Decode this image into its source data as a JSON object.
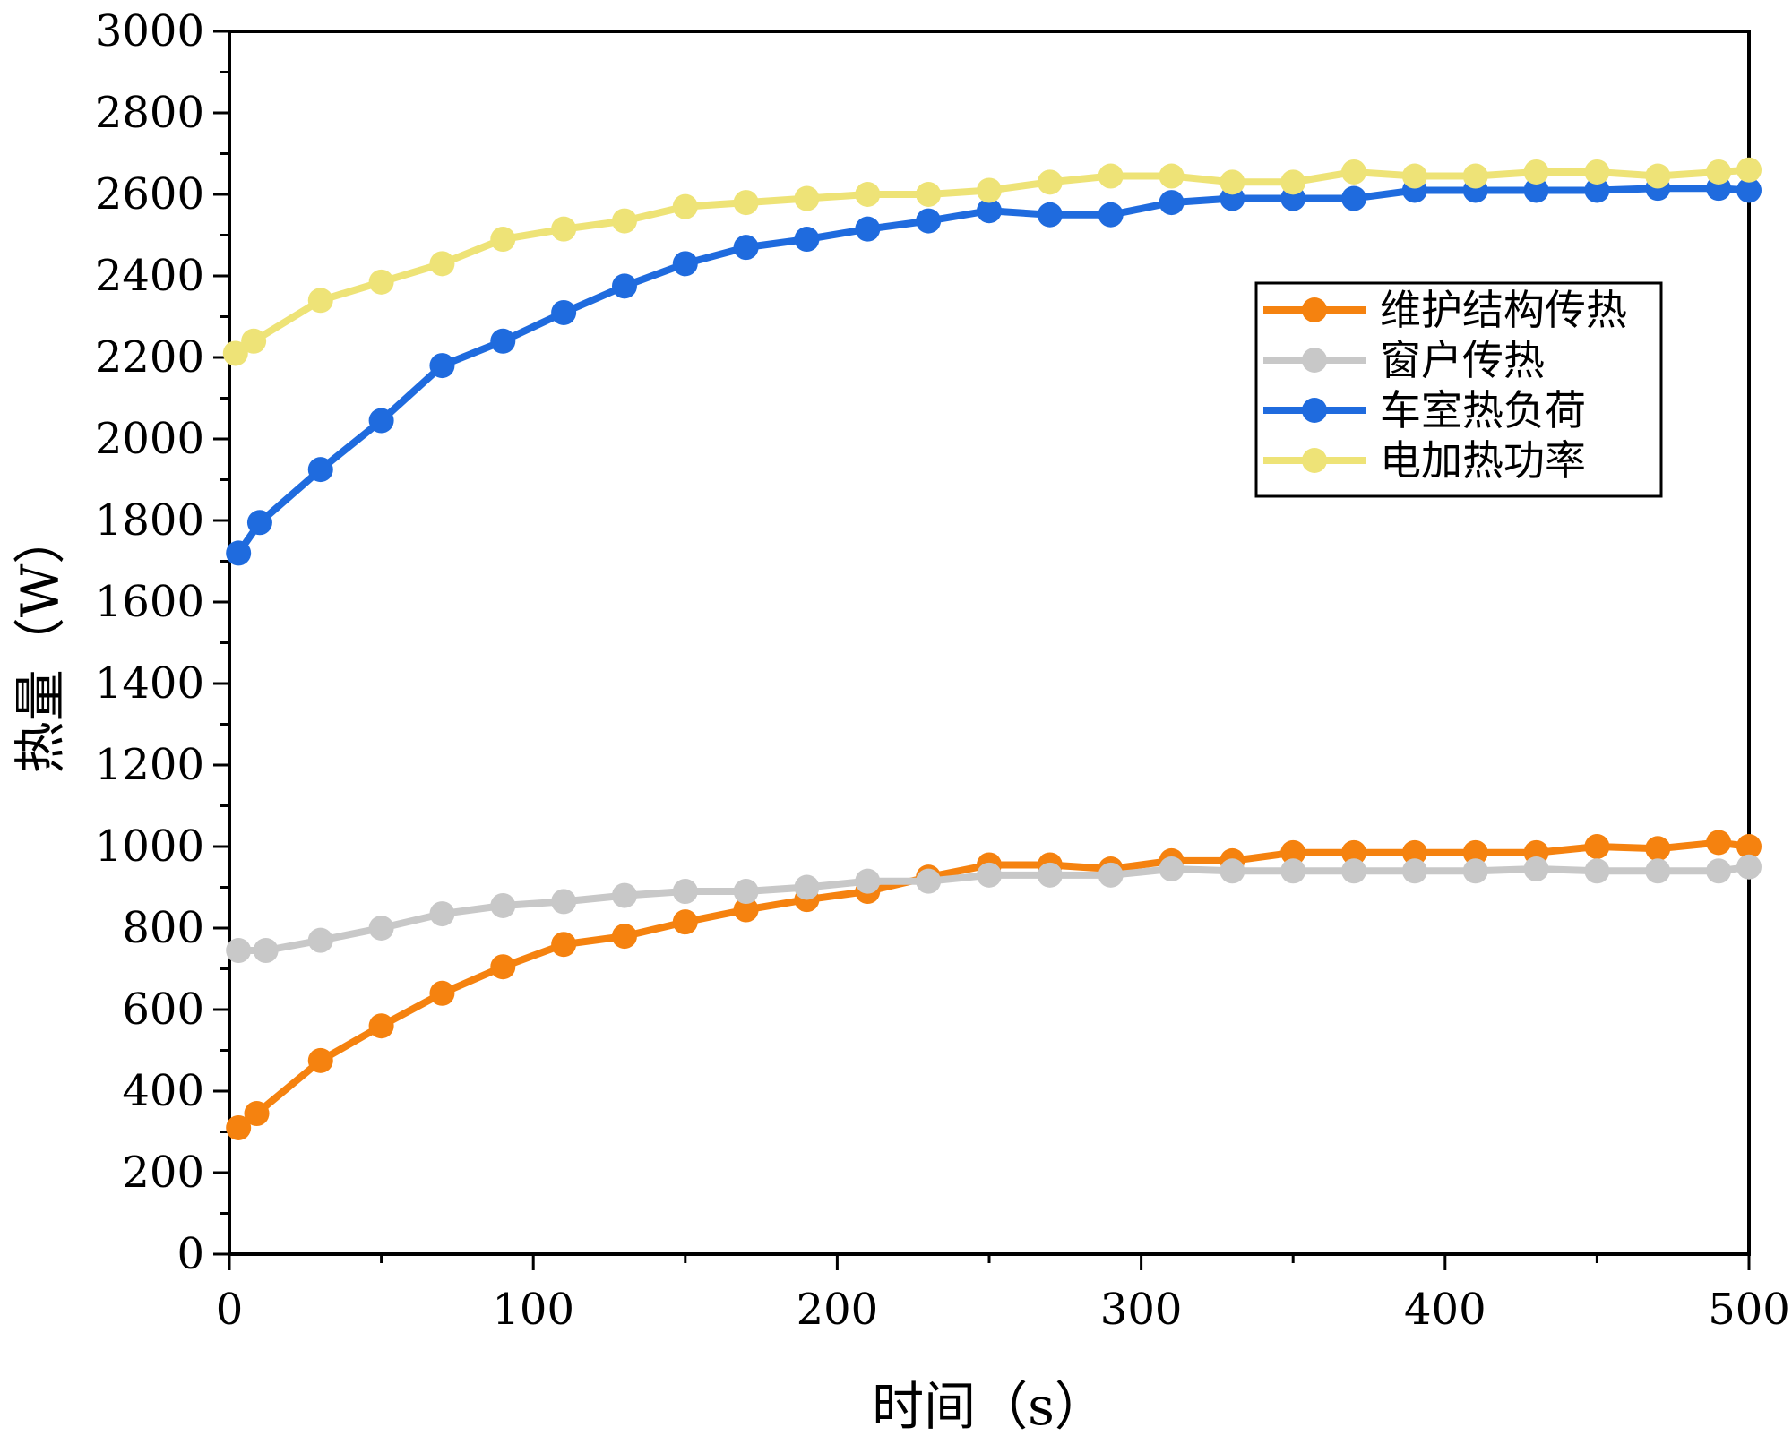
{
  "chart_data": {
    "type": "line",
    "title": "",
    "xlabel": "时间（s）",
    "ylabel": "热量（W）",
    "xlim": [
      0,
      500
    ],
    "ylim": [
      0,
      3000
    ],
    "xticks": [
      0,
      100,
      200,
      300,
      400,
      500
    ],
    "yticks": [
      0,
      200,
      400,
      600,
      800,
      1000,
      1200,
      1400,
      1600,
      1800,
      2000,
      2200,
      2400,
      2600,
      2800,
      3000
    ],
    "grid": false,
    "legend_position": "upper-right",
    "series": [
      {
        "name": "维护结构传热",
        "color": "#f5820f",
        "x": [
          3,
          9,
          30,
          50,
          70,
          90,
          110,
          130,
          150,
          170,
          190,
          210,
          230,
          250,
          270,
          290,
          310,
          330,
          350,
          370,
          390,
          410,
          430,
          450,
          470,
          490,
          500
        ],
        "y": [
          310,
          345,
          475,
          560,
          640,
          705,
          760,
          780,
          815,
          845,
          870,
          890,
          925,
          955,
          955,
          945,
          965,
          965,
          985,
          985,
          985,
          985,
          985,
          1000,
          995,
          1010,
          1000
        ]
      },
      {
        "name": "窗户传热",
        "color": "#c8c8c8",
        "x": [
          3,
          12,
          30,
          50,
          70,
          90,
          110,
          130,
          150,
          170,
          190,
          210,
          230,
          250,
          270,
          290,
          310,
          330,
          350,
          370,
          390,
          410,
          430,
          450,
          470,
          490,
          500
        ],
        "y": [
          745,
          745,
          770,
          800,
          835,
          855,
          865,
          880,
          890,
          890,
          900,
          915,
          915,
          930,
          930,
          930,
          945,
          940,
          940,
          940,
          940,
          940,
          945,
          940,
          940,
          940,
          950
        ]
      },
      {
        "name": "车室热负荷",
        "color": "#1f6bde",
        "x": [
          3,
          10,
          30,
          50,
          70,
          90,
          110,
          130,
          150,
          170,
          190,
          210,
          230,
          250,
          270,
          290,
          310,
          330,
          350,
          370,
          390,
          410,
          430,
          450,
          470,
          490,
          500
        ],
        "y": [
          1720,
          1795,
          1925,
          2045,
          2180,
          2240,
          2310,
          2375,
          2430,
          2470,
          2490,
          2515,
          2535,
          2560,
          2550,
          2550,
          2580,
          2590,
          2590,
          2590,
          2610,
          2610,
          2610,
          2610,
          2615,
          2615,
          2610
        ]
      },
      {
        "name": "电加热功率",
        "color": "#eee377",
        "x": [
          2,
          8,
          30,
          50,
          70,
          90,
          110,
          130,
          150,
          170,
          190,
          210,
          230,
          250,
          270,
          290,
          310,
          330,
          350,
          370,
          390,
          410,
          430,
          450,
          470,
          490,
          500
        ],
        "y": [
          2210,
          2240,
          2340,
          2385,
          2430,
          2490,
          2515,
          2535,
          2570,
          2580,
          2590,
          2600,
          2600,
          2610,
          2630,
          2645,
          2645,
          2630,
          2630,
          2655,
          2645,
          2645,
          2655,
          2655,
          2645,
          2655,
          2660
        ]
      }
    ]
  }
}
